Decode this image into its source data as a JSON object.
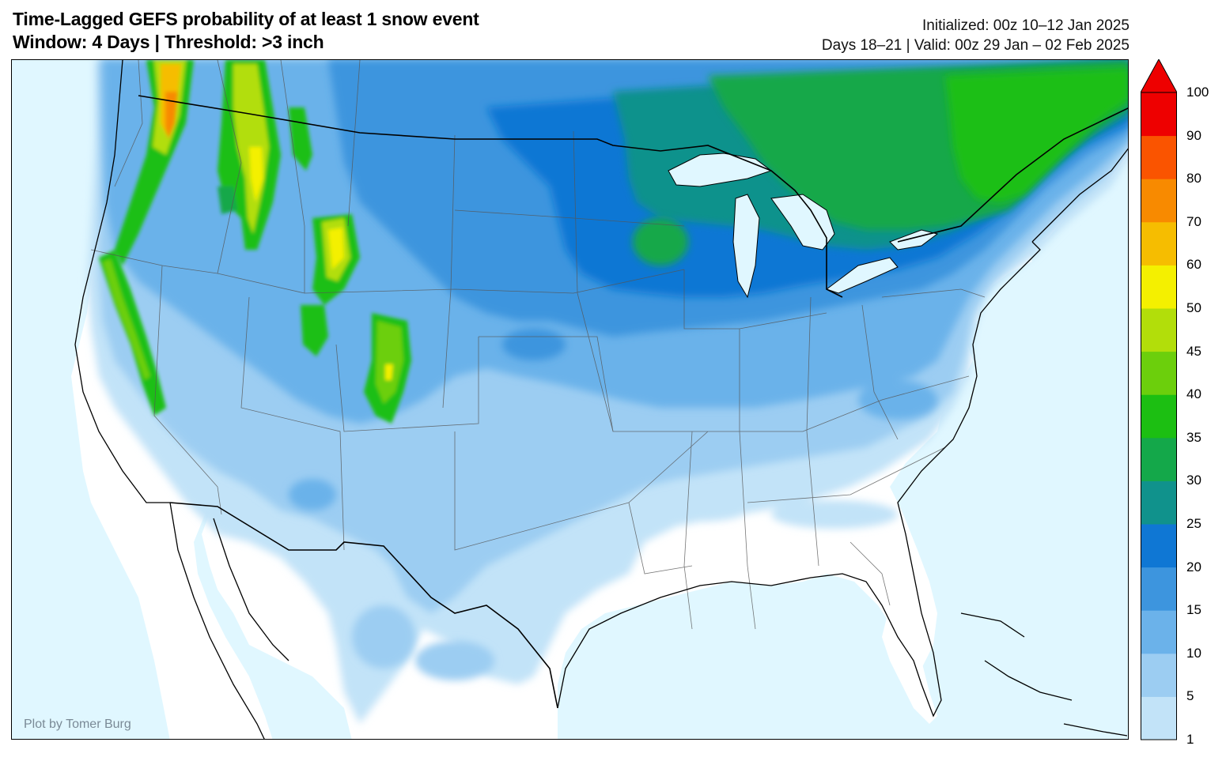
{
  "title": {
    "line1": "Time-Lagged GEFS probability of at least 1 snow event",
    "line2": "Window: 4 Days | Threshold: >3 inch"
  },
  "info": {
    "initialized": "Initialized: 00z 10–12 Jan 2025",
    "valid": "Days 18–21 | Valid: 00z 29 Jan – 02 Feb 2025"
  },
  "credit": "Plot by Tomer Burg",
  "colorbar": {
    "ticks": [
      "1",
      "5",
      "10",
      "15",
      "20",
      "25",
      "30",
      "35",
      "40",
      "45",
      "50",
      "60",
      "70",
      "80",
      "90",
      "100"
    ],
    "colors": [
      "#c2e3f8",
      "#9ccdf2",
      "#6bb2ea",
      "#3d95de",
      "#0f77d4",
      "#10928c",
      "#14a84a",
      "#1cbf12",
      "#6ccf0c",
      "#b2de0a",
      "#f4f000",
      "#f6bd00",
      "#f88a00",
      "#fa5400",
      "#ee0000"
    ],
    "extend_color": "#ee0000"
  },
  "colors": {
    "ocean": "#e0f7ff",
    "land": "#ffffff"
  }
}
